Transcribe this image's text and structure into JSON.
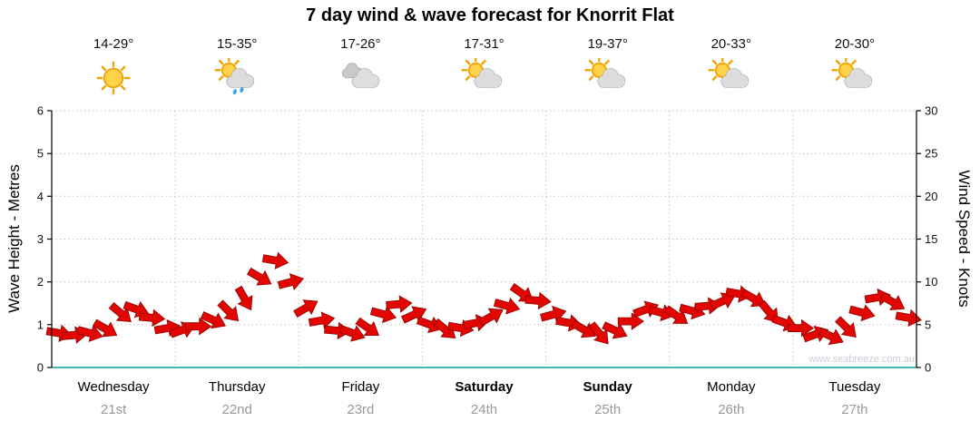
{
  "title": "7 day wind & wave forecast for Knorrit Flat",
  "days": [
    {
      "label": "Wednesday",
      "date": "21st",
      "temp": "14-29°",
      "icon": "sunny",
      "bold": false
    },
    {
      "label": "Thursday",
      "date": "22nd",
      "temp": "15-35°",
      "icon": "shower",
      "bold": false
    },
    {
      "label": "Friday",
      "date": "23rd",
      "temp": "17-26°",
      "icon": "cloudy",
      "bold": false
    },
    {
      "label": "Saturday",
      "date": "24th",
      "temp": "17-31°",
      "icon": "partly",
      "bold": true
    },
    {
      "label": "Sunday",
      "date": "25th",
      "temp": "19-37°",
      "icon": "partly",
      "bold": true
    },
    {
      "label": "Monday",
      "date": "26th",
      "temp": "20-33°",
      "icon": "partly",
      "bold": false
    },
    {
      "label": "Tuesday",
      "date": "27th",
      "temp": "20-30°",
      "icon": "partly",
      "bold": false
    }
  ],
  "left_axis": {
    "title": "Wave Height - Metres",
    "ticks": [
      "0",
      "1",
      "2",
      "3",
      "4",
      "5",
      "6"
    ]
  },
  "right_axis": {
    "title": "Wind Speed - Knots",
    "ticks": [
      "0",
      "5",
      "10",
      "15",
      "20",
      "25",
      "30"
    ]
  },
  "watermark": "www.seabreeze.com.au",
  "colors": {
    "arrow": "#e10600",
    "arrow_edge": "#8f0000",
    "grid": "#c4c4c4",
    "axis": "#000000",
    "baseline": "#45b5b5",
    "date_label": "#999999",
    "watermark": "#c9cfd6",
    "sun_fill": "#ffd24a",
    "sun_edge": "#ef9f00",
    "rain_drop": "#3fa4e6"
  },
  "chart_data": {
    "type": "scatter",
    "subtype": "wind-direction-arrows",
    "title": "7 day wind & wave forecast for Knorrit Flat",
    "categories": [
      "Wednesday 21st",
      "Thursday 22nd",
      "Friday 23rd",
      "Saturday 24th",
      "Sunday 25th",
      "Monday 26th",
      "Tuesday 27th"
    ],
    "x": {
      "start": "Wednesday 21st",
      "end": "Tuesday 27th",
      "points_per_day": 8,
      "interval_hours": 3
    },
    "left_axis": {
      "label": "Wave Height - Metres",
      "range": [
        0,
        6
      ],
      "gridlines": true
    },
    "right_axis": {
      "label": "Wind Speed - Knots",
      "range": [
        0,
        30
      ]
    },
    "legend": "none",
    "marker": "red wind arrow rotated by wind direction; height above baseline reads on both axes (wave m = knots / 5)",
    "wind_speed_knots": [
      4.0,
      3.8,
      4.0,
      4.5,
      6.3,
      6.8,
      5.8,
      4.6,
      4.4,
      4.8,
      5.5,
      6.5,
      8.0,
      10.5,
      12.5,
      10.0,
      7.0,
      5.5,
      4.3,
      4.0,
      4.6,
      6.2,
      7.4,
      6.2,
      5.0,
      4.4,
      4.6,
      5.2,
      6.0,
      7.2,
      8.6,
      7.8,
      6.2,
      5.2,
      4.4,
      3.9,
      4.3,
      5.4,
      6.8,
      6.4,
      6.0,
      6.6,
      7.2,
      7.8,
      8.6,
      8.0,
      6.4,
      5.2,
      4.6,
      3.9,
      3.6,
      4.6,
      6.4,
      8.2,
      7.6,
      5.8
    ],
    "wind_dir_deg": [
      10,
      -5,
      15,
      30,
      40,
      20,
      5,
      -10,
      -20,
      0,
      25,
      45,
      60,
      30,
      10,
      -15,
      -30,
      -10,
      5,
      20,
      35,
      15,
      -5,
      -25,
      20,
      40,
      10,
      -10,
      -30,
      15,
      35,
      5,
      -15,
      10,
      30,
      50,
      25,
      0,
      -20,
      15,
      35,
      15,
      -5,
      -25,
      10,
      30,
      50,
      20,
      0,
      -20,
      25,
      45,
      15,
      -10,
      30,
      10
    ]
  }
}
